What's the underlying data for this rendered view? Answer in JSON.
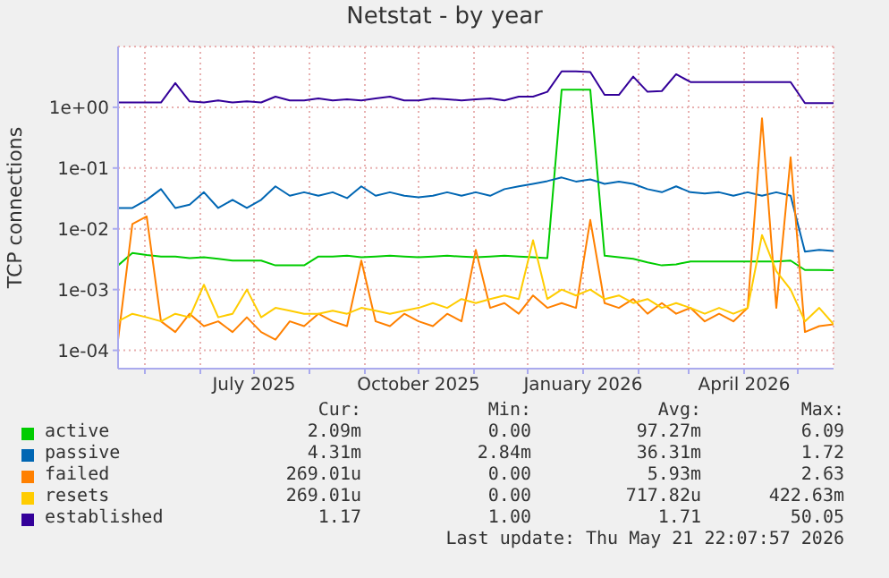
{
  "chart_data": {
    "type": "line",
    "title": "Netstat - by year",
    "ylabel": "TCP connections",
    "log": "y",
    "grid": true,
    "legend": "bottom",
    "marker": "none",
    "line_style": "solid",
    "xlim": [
      "2025-04-16",
      "2026-05-21"
    ],
    "xticks": [
      {
        "value": "2025-05-01",
        "label": null
      },
      {
        "value": "2025-06-01",
        "label": null
      },
      {
        "value": "2025-07-01",
        "label": "July 2025"
      },
      {
        "value": "2025-08-01",
        "label": null
      },
      {
        "value": "2025-09-01",
        "label": null
      },
      {
        "value": "2025-10-01",
        "label": "October 2025"
      },
      {
        "value": "2025-11-01",
        "label": null
      },
      {
        "value": "2025-12-01",
        "label": null
      },
      {
        "value": "2026-01-01",
        "label": "January 2026"
      },
      {
        "value": "2026-02-01",
        "label": null
      },
      {
        "value": "2026-03-01",
        "label": null
      },
      {
        "value": "2026-04-01",
        "label": "April 2026"
      },
      {
        "value": "2026-05-01",
        "label": null
      }
    ],
    "ylim": [
      5e-05,
      10
    ],
    "yticks": [
      {
        "value": 0.0001,
        "label": "1e-04"
      },
      {
        "value": 0.001,
        "label": "1e-03"
      },
      {
        "value": 0.01,
        "label": "1e-02"
      },
      {
        "value": 0.1,
        "label": "1e-01"
      },
      {
        "value": 1,
        "label": "1e+00"
      }
    ],
    "x": [
      "2025-04-16",
      "2025-04-24",
      "2025-05-02",
      "2025-05-10",
      "2025-05-18",
      "2025-05-26",
      "2025-06-03",
      "2025-06-11",
      "2025-06-19",
      "2025-06-27",
      "2025-07-05",
      "2025-07-13",
      "2025-07-21",
      "2025-07-29",
      "2025-08-06",
      "2025-08-14",
      "2025-08-22",
      "2025-08-30",
      "2025-09-07",
      "2025-09-15",
      "2025-09-23",
      "2025-10-01",
      "2025-10-09",
      "2025-10-17",
      "2025-10-25",
      "2025-11-02",
      "2025-11-10",
      "2025-11-18",
      "2025-11-26",
      "2025-12-04",
      "2025-12-12",
      "2025-12-20",
      "2025-12-28",
      "2026-01-05",
      "2026-01-13",
      "2026-01-21",
      "2026-01-29",
      "2026-02-06",
      "2026-02-14",
      "2026-02-22",
      "2026-03-02",
      "2026-03-10",
      "2026-03-18",
      "2026-03-26",
      "2026-04-03",
      "2026-04-11",
      "2026-04-19",
      "2026-04-27",
      "2026-05-05",
      "2026-05-13",
      "2026-05-21"
    ],
    "series": [
      {
        "name": "active",
        "color": "#00cc00",
        "values": [
          0.0025,
          0.004,
          0.0037,
          0.0035,
          0.0035,
          0.0033,
          0.0034,
          0.0032,
          0.003,
          0.003,
          0.003,
          0.0025,
          0.0025,
          0.0025,
          0.0035,
          0.0035,
          0.0036,
          0.0034,
          0.0035,
          0.0036,
          0.0035,
          0.0034,
          0.0035,
          0.0036,
          0.0035,
          0.0034,
          0.0035,
          0.0036,
          0.0035,
          0.0034,
          0.0033,
          1.94,
          1.94,
          1.94,
          0.0036,
          0.0034,
          0.0032,
          0.0028,
          0.0025,
          0.0026,
          0.0029,
          0.0029,
          0.0029,
          0.0029,
          0.0029,
          0.0029,
          0.0029,
          0.003,
          0.0021,
          0.0021,
          0.00209
        ]
      },
      {
        "name": "passive",
        "color": "#0066b3",
        "values": [
          0.022,
          0.022,
          0.03,
          0.045,
          0.022,
          0.025,
          0.04,
          0.022,
          0.03,
          0.022,
          0.03,
          0.05,
          0.035,
          0.04,
          0.035,
          0.04,
          0.032,
          0.05,
          0.035,
          0.04,
          0.035,
          0.033,
          0.035,
          0.04,
          0.035,
          0.04,
          0.035,
          0.045,
          0.05,
          0.055,
          0.061,
          0.07,
          0.06,
          0.065,
          0.055,
          0.06,
          0.055,
          0.045,
          0.04,
          0.05,
          0.04,
          0.038,
          0.04,
          0.035,
          0.04,
          0.035,
          0.04,
          0.035,
          0.0042,
          0.0045,
          0.0043
        ]
      },
      {
        "name": "failed",
        "color": "#ff8000",
        "values": [
          0.00015,
          0.012,
          0.016,
          0.0003,
          0.0002,
          0.0004,
          0.00025,
          0.0003,
          0.0002,
          0.00035,
          0.0002,
          0.00015,
          0.0003,
          0.00025,
          0.0004,
          0.0003,
          0.00025,
          0.003,
          0.0003,
          0.00025,
          0.0004,
          0.0003,
          0.00025,
          0.0004,
          0.0003,
          0.0045,
          0.0005,
          0.0006,
          0.0004,
          0.0008,
          0.0005,
          0.0006,
          0.0005,
          0.014,
          0.0006,
          0.0005,
          0.0007,
          0.0004,
          0.0006,
          0.0004,
          0.0005,
          0.0003,
          0.0004,
          0.0003,
          0.0005,
          0.66,
          0.0005,
          0.15,
          0.0002,
          0.00025,
          0.000269
        ]
      },
      {
        "name": "resets",
        "color": "#ffcc00",
        "values": [
          0.0003,
          0.0004,
          0.00035,
          0.0003,
          0.0004,
          0.00035,
          0.0012,
          0.00035,
          0.0004,
          0.001,
          0.00035,
          0.0005,
          0.00045,
          0.0004,
          0.0004,
          0.00045,
          0.0004,
          0.0005,
          0.00045,
          0.0004,
          0.00045,
          0.0005,
          0.0006,
          0.0005,
          0.0007,
          0.0006,
          0.0007,
          0.0008,
          0.0007,
          0.0065,
          0.0007,
          0.001,
          0.0008,
          0.001,
          0.0007,
          0.0008,
          0.0006,
          0.0007,
          0.0005,
          0.0006,
          0.0005,
          0.0004,
          0.0005,
          0.0004,
          0.0005,
          0.0079,
          0.002,
          0.001,
          0.0003,
          0.0005,
          0.000269
        ]
      },
      {
        "name": "established",
        "color": "#330099",
        "values": [
          1.2,
          1.2,
          1.2,
          1.2,
          2.5,
          1.25,
          1.2,
          1.3,
          1.2,
          1.25,
          1.2,
          1.5,
          1.3,
          1.3,
          1.4,
          1.3,
          1.35,
          1.3,
          1.4,
          1.5,
          1.3,
          1.3,
          1.4,
          1.35,
          1.3,
          1.35,
          1.4,
          1.3,
          1.5,
          1.5,
          1.8,
          3.9,
          3.9,
          3.8,
          1.6,
          1.6,
          3.2,
          1.8,
          1.85,
          3.5,
          2.6,
          2.6,
          2.6,
          2.6,
          2.6,
          2.6,
          2.6,
          2.6,
          1.17,
          1.17,
          1.17
        ]
      }
    ],
    "annotations": [
      "Cur:",
      "Min:",
      "Avg:",
      "Max:",
      "2.09m",
      "0.00",
      "97.27m",
      "6.09",
      "4.31m",
      "2.84m",
      "36.31m",
      "1.72",
      "269.01u",
      "0.00",
      "5.93m",
      "2.63",
      "269.01u",
      "0.00",
      "717.82u",
      "422.63m",
      "1.17",
      "1.00",
      "1.71",
      "50.05",
      "Last update: Thu May 21 22:07:57 2026"
    ]
  }
}
